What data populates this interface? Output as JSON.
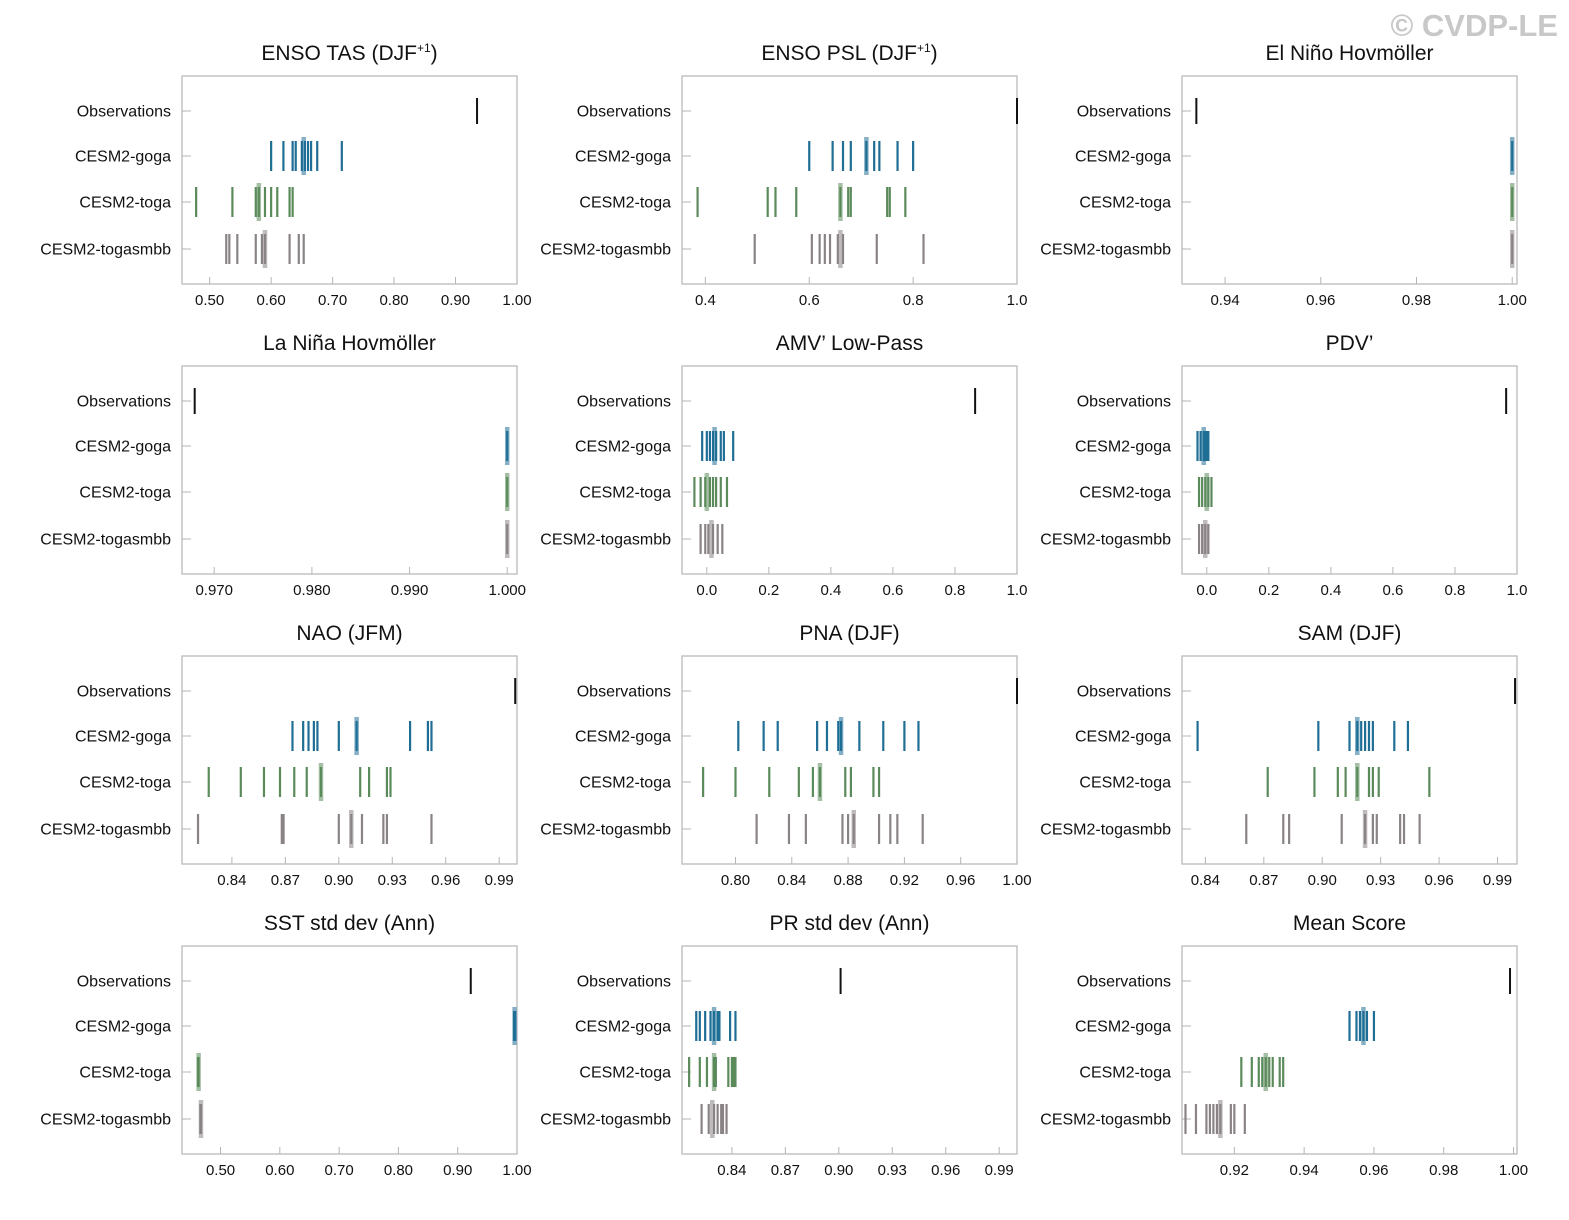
{
  "watermark": "© CVDP-LE",
  "rows": [
    "Observations",
    "CESM2-goga",
    "CESM2-toga",
    "CESM2-togasmbb"
  ],
  "colors": {
    "Observations": "#111111",
    "CESM2-goga": "#1f6e96",
    "CESM2-toga": "#5b8a5b",
    "CESM2-togasmbb": "#8a8385"
  },
  "chart_data": [
    {
      "type": "scatter",
      "title": "ENSO TAS (DJF",
      "title_sup": "+1",
      "title_after": ")",
      "xlim": [
        0.455,
        1.0
      ],
      "ticks": [
        0.5,
        0.6,
        0.7,
        0.8,
        0.9,
        1.0
      ],
      "ticklabels": [
        "0.50",
        "0.60",
        "0.70",
        "0.80",
        "0.90",
        "1.00"
      ],
      "series": [
        {
          "name": "Observations",
          "values": [
            0.935
          ],
          "mean": 0.935
        },
        {
          "name": "CESM2-goga",
          "values": [
            0.6,
            0.62,
            0.635,
            0.64,
            0.65,
            0.655,
            0.66,
            0.665,
            0.675,
            0.715
          ],
          "mean": 0.653
        },
        {
          "name": "CESM2-toga",
          "values": [
            0.478,
            0.537,
            0.575,
            0.58,
            0.59,
            0.6,
            0.61,
            0.63,
            0.635
          ],
          "mean": 0.58
        },
        {
          "name": "CESM2-togasmbb",
          "values": [
            0.527,
            0.532,
            0.545,
            0.575,
            0.585,
            0.59,
            0.63,
            0.645,
            0.653
          ],
          "mean": 0.59
        }
      ]
    },
    {
      "type": "scatter",
      "title": "ENSO PSL (DJF",
      "title_sup": "+1",
      "title_after": ")",
      "xlim": [
        0.355,
        1.0
      ],
      "ticks": [
        0.4,
        0.6,
        0.8,
        1.0
      ],
      "ticklabels": [
        "0.4",
        "0.6",
        "0.8",
        "1.0"
      ],
      "series": [
        {
          "name": "Observations",
          "values": [
            1.0
          ],
          "mean": 1.0
        },
        {
          "name": "CESM2-goga",
          "values": [
            0.6,
            0.645,
            0.665,
            0.68,
            0.71,
            0.725,
            0.735,
            0.77,
            0.8
          ],
          "mean": 0.71
        },
        {
          "name": "CESM2-toga",
          "values": [
            0.385,
            0.52,
            0.535,
            0.575,
            0.66,
            0.675,
            0.68,
            0.75,
            0.755,
            0.785
          ],
          "mean": 0.66
        },
        {
          "name": "CESM2-togasmbb",
          "values": [
            0.495,
            0.605,
            0.62,
            0.63,
            0.64,
            0.655,
            0.665,
            0.73,
            0.82
          ],
          "mean": 0.66
        }
      ]
    },
    {
      "type": "scatter",
      "title": "El Niño Hovmöller",
      "title_sup": "",
      "title_after": "",
      "xlim": [
        0.931,
        1.001
      ],
      "ticks": [
        0.94,
        0.96,
        0.98,
        1.0
      ],
      "ticklabels": [
        "0.94",
        "0.96",
        "0.98",
        "1.00"
      ],
      "series": [
        {
          "name": "Observations",
          "values": [
            0.934
          ],
          "mean": 0.934
        },
        {
          "name": "CESM2-goga",
          "values": [
            1.0
          ],
          "mean": 1.0
        },
        {
          "name": "CESM2-toga",
          "values": [
            1.0
          ],
          "mean": 1.0
        },
        {
          "name": "CESM2-togasmbb",
          "values": [
            1.0
          ],
          "mean": 1.0
        }
      ]
    },
    {
      "type": "scatter",
      "title": "La Niña Hovmöller",
      "title_sup": "",
      "title_after": "",
      "xlim": [
        0.9667,
        1.001
      ],
      "ticks": [
        0.97,
        0.98,
        0.99,
        1.0
      ],
      "ticklabels": [
        "0.970",
        "0.980",
        "0.990",
        "1.000"
      ],
      "series": [
        {
          "name": "Observations",
          "values": [
            0.968
          ],
          "mean": 0.968
        },
        {
          "name": "CESM2-goga",
          "values": [
            1.0
          ],
          "mean": 1.0
        },
        {
          "name": "CESM2-toga",
          "values": [
            1.0
          ],
          "mean": 1.0
        },
        {
          "name": "CESM2-togasmbb",
          "values": [
            1.0
          ],
          "mean": 1.0
        }
      ]
    },
    {
      "type": "scatter",
      "title": "AMV’ Low-Pass",
      "title_sup": "",
      "title_after": "",
      "xlim": [
        -0.08,
        1.0
      ],
      "ticks": [
        0.0,
        0.2,
        0.4,
        0.6,
        0.8,
        1.0
      ],
      "ticklabels": [
        "0.0",
        "0.2",
        "0.4",
        "0.6",
        "0.8",
        "1.0"
      ],
      "series": [
        {
          "name": "Observations",
          "values": [
            0.865
          ],
          "mean": 0.865
        },
        {
          "name": "CESM2-goga",
          "values": [
            -0.015,
            0.0,
            0.01,
            0.02,
            0.03,
            0.045,
            0.055,
            0.085
          ],
          "mean": 0.025
        },
        {
          "name": "CESM2-toga",
          "values": [
            -0.04,
            -0.02,
            -0.005,
            0.01,
            0.02,
            0.03,
            0.045,
            0.065
          ],
          "mean": 0.0
        },
        {
          "name": "CESM2-togasmbb",
          "values": [
            -0.02,
            -0.005,
            0.005,
            0.02,
            0.035,
            0.05
          ],
          "mean": 0.015
        }
      ]
    },
    {
      "type": "scatter",
      "title": "PDV’",
      "title_sup": "",
      "title_after": "",
      "xlim": [
        -0.08,
        1.0
      ],
      "ticks": [
        0.0,
        0.2,
        0.4,
        0.6,
        0.8,
        1.0
      ],
      "ticklabels": [
        "0.0",
        "0.2",
        "0.4",
        "0.6",
        "0.8",
        "1.0"
      ],
      "series": [
        {
          "name": "Observations",
          "values": [
            0.965
          ],
          "mean": 0.965
        },
        {
          "name": "CESM2-goga",
          "values": [
            -0.03,
            -0.02,
            -0.01,
            -0.005,
            0.0,
            0.005
          ],
          "mean": -0.01
        },
        {
          "name": "CESM2-toga",
          "values": [
            -0.025,
            -0.015,
            -0.005,
            0.005,
            0.015
          ],
          "mean": 0.0
        },
        {
          "name": "CESM2-togasmbb",
          "values": [
            -0.025,
            -0.015,
            -0.005,
            0.005
          ],
          "mean": -0.005
        }
      ]
    },
    {
      "type": "scatter",
      "title": "NAO (JFM)",
      "title_sup": "",
      "title_after": "",
      "xlim": [
        0.812,
        1.0
      ],
      "ticks": [
        0.84,
        0.87,
        0.9,
        0.93,
        0.96,
        0.99
      ],
      "ticklabels": [
        "0.84",
        "0.87",
        "0.90",
        "0.93",
        "0.96",
        "0.99"
      ],
      "series": [
        {
          "name": "Observations",
          "values": [
            0.999
          ],
          "mean": 0.999
        },
        {
          "name": "CESM2-goga",
          "values": [
            0.874,
            0.88,
            0.883,
            0.886,
            0.888,
            0.9,
            0.91,
            0.94,
            0.95,
            0.952
          ],
          "mean": 0.91
        },
        {
          "name": "CESM2-toga",
          "values": [
            0.827,
            0.845,
            0.858,
            0.867,
            0.875,
            0.882,
            0.89,
            0.912,
            0.917,
            0.927,
            0.929
          ],
          "mean": 0.89
        },
        {
          "name": "CESM2-togasmbb",
          "values": [
            0.821,
            0.868,
            0.869,
            0.9,
            0.907,
            0.913,
            0.925,
            0.927,
            0.952
          ],
          "mean": 0.907
        }
      ]
    },
    {
      "type": "scatter",
      "title": "PNA (DJF)",
      "title_sup": "",
      "title_after": "",
      "xlim": [
        0.762,
        1.0
      ],
      "ticks": [
        0.8,
        0.84,
        0.88,
        0.92,
        0.96,
        1.0
      ],
      "ticklabels": [
        "0.80",
        "0.84",
        "0.88",
        "0.92",
        "0.96",
        "1.00"
      ],
      "series": [
        {
          "name": "Observations",
          "values": [
            1.0
          ],
          "mean": 1.0
        },
        {
          "name": "CESM2-goga",
          "values": [
            0.802,
            0.82,
            0.83,
            0.858,
            0.865,
            0.873,
            0.875,
            0.888,
            0.905,
            0.92,
            0.93
          ],
          "mean": 0.875
        },
        {
          "name": "CESM2-toga",
          "values": [
            0.777,
            0.8,
            0.824,
            0.845,
            0.855,
            0.86,
            0.878,
            0.882,
            0.898,
            0.902
          ],
          "mean": 0.86
        },
        {
          "name": "CESM2-togasmbb",
          "values": [
            0.815,
            0.838,
            0.85,
            0.876,
            0.88,
            0.884,
            0.902,
            0.91,
            0.915,
            0.933
          ],
          "mean": 0.884
        }
      ]
    },
    {
      "type": "scatter",
      "title": "SAM (DJF)",
      "title_sup": "",
      "title_after": "",
      "xlim": [
        0.828,
        1.0
      ],
      "ticks": [
        0.84,
        0.87,
        0.9,
        0.93,
        0.96,
        0.99
      ],
      "ticklabels": [
        "0.84",
        "0.87",
        "0.90",
        "0.93",
        "0.96",
        "0.99"
      ],
      "series": [
        {
          "name": "Observations",
          "values": [
            0.999
          ],
          "mean": 0.999
        },
        {
          "name": "CESM2-goga",
          "values": [
            0.836,
            0.898,
            0.914,
            0.918,
            0.92,
            0.922,
            0.924,
            0.926,
            0.937,
            0.944
          ],
          "mean": 0.918
        },
        {
          "name": "CESM2-toga",
          "values": [
            0.872,
            0.896,
            0.908,
            0.912,
            0.918,
            0.924,
            0.926,
            0.929,
            0.955
          ],
          "mean": 0.918
        },
        {
          "name": "CESM2-togasmbb",
          "values": [
            0.861,
            0.88,
            0.883,
            0.91,
            0.922,
            0.926,
            0.928,
            0.94,
            0.942,
            0.95
          ],
          "mean": 0.922
        }
      ]
    },
    {
      "type": "scatter",
      "title": "SST std dev (Ann)",
      "title_sup": "",
      "title_after": "",
      "xlim": [
        0.435,
        1.0
      ],
      "ticks": [
        0.5,
        0.6,
        0.7,
        0.8,
        0.9,
        1.0
      ],
      "ticklabels": [
        "0.50",
        "0.60",
        "0.70",
        "0.80",
        "0.90",
        "1.00"
      ],
      "series": [
        {
          "name": "Observations",
          "values": [
            0.922
          ],
          "mean": 0.922
        },
        {
          "name": "CESM2-goga",
          "values": [
            0.995,
            0.997
          ],
          "mean": 0.996
        },
        {
          "name": "CESM2-toga",
          "values": [
            0.462,
            0.463
          ],
          "mean": 0.463
        },
        {
          "name": "CESM2-togasmbb",
          "values": [
            0.466,
            0.467
          ],
          "mean": 0.467
        }
      ]
    },
    {
      "type": "scatter",
      "title": "PR std dev (Ann)",
      "title_sup": "",
      "title_after": "",
      "xlim": [
        0.812,
        1.0
      ],
      "ticks": [
        0.84,
        0.87,
        0.9,
        0.93,
        0.96,
        0.99
      ],
      "ticklabels": [
        "0.84",
        "0.87",
        "0.90",
        "0.93",
        "0.96",
        "0.99"
      ],
      "series": [
        {
          "name": "Observations",
          "values": [
            0.901
          ],
          "mean": 0.901
        },
        {
          "name": "CESM2-goga",
          "values": [
            0.82,
            0.822,
            0.825,
            0.828,
            0.83,
            0.832,
            0.833,
            0.839,
            0.842
          ],
          "mean": 0.83
        },
        {
          "name": "CESM2-toga",
          "values": [
            0.816,
            0.822,
            0.826,
            0.83,
            0.831,
            0.838,
            0.84,
            0.841,
            0.842
          ],
          "mean": 0.83
        },
        {
          "name": "CESM2-togasmbb",
          "values": [
            0.823,
            0.827,
            0.83,
            0.832,
            0.834,
            0.835,
            0.837
          ],
          "mean": 0.829
        }
      ]
    },
    {
      "type": "scatter",
      "title": "Mean Score",
      "title_sup": "",
      "title_after": "",
      "xlim": [
        0.905,
        1.001
      ],
      "ticks": [
        0.92,
        0.94,
        0.96,
        0.98,
        1.0
      ],
      "ticklabels": [
        "0.92",
        "0.94",
        "0.96",
        "0.98",
        "1.00"
      ],
      "series": [
        {
          "name": "Observations",
          "values": [
            0.999
          ],
          "mean": 0.999
        },
        {
          "name": "CESM2-goga",
          "values": [
            0.953,
            0.955,
            0.956,
            0.957,
            0.958,
            0.96
          ],
          "mean": 0.957
        },
        {
          "name": "CESM2-toga",
          "values": [
            0.922,
            0.925,
            0.927,
            0.928,
            0.929,
            0.93,
            0.931,
            0.933,
            0.934
          ],
          "mean": 0.929
        },
        {
          "name": "CESM2-togasmbb",
          "values": [
            0.906,
            0.909,
            0.912,
            0.913,
            0.914,
            0.915,
            0.916,
            0.919,
            0.92,
            0.923
          ],
          "mean": 0.916
        }
      ]
    }
  ]
}
